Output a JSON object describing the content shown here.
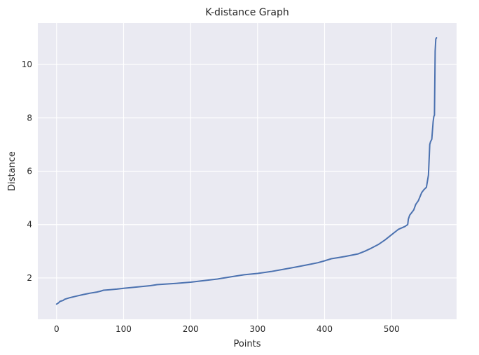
{
  "chart_data": {
    "type": "line",
    "title": "K-distance Graph",
    "xlabel": "Points",
    "ylabel": "Distance",
    "xlim": [
      -28,
      597
    ],
    "ylim": [
      0.45,
      11.55
    ],
    "xticks": [
      0,
      100,
      200,
      300,
      400,
      500
    ],
    "yticks": [
      2,
      4,
      6,
      8,
      10
    ],
    "grid": true,
    "legend": "none",
    "colors": {
      "line": "#4c72b0",
      "plot_bg": "#eaeaf2",
      "grid": "#ffffff"
    },
    "series": [
      {
        "x": [
          0,
          3,
          5,
          10,
          12,
          20,
          30,
          40,
          50,
          60,
          65,
          70,
          80,
          90,
          100,
          120,
          140,
          150,
          170,
          180,
          200,
          220,
          240,
          260,
          280,
          300,
          320,
          340,
          360,
          380,
          390,
          400,
          410,
          420,
          430,
          440,
          450,
          460,
          470,
          480,
          490,
          500,
          510,
          520,
          524,
          525,
          527,
          530,
          533,
          536,
          540,
          545,
          548,
          552,
          555,
          557,
          558,
          560,
          562,
          563,
          564,
          565,
          566,
          567
        ],
        "y": [
          1.02,
          1.07,
          1.12,
          1.16,
          1.2,
          1.26,
          1.32,
          1.38,
          1.43,
          1.47,
          1.5,
          1.54,
          1.56,
          1.58,
          1.61,
          1.66,
          1.71,
          1.75,
          1.78,
          1.8,
          1.84,
          1.9,
          1.96,
          2.04,
          2.12,
          2.17,
          2.24,
          2.33,
          2.42,
          2.52,
          2.57,
          2.64,
          2.72,
          2.76,
          2.8,
          2.85,
          2.9,
          3.0,
          3.12,
          3.25,
          3.42,
          3.62,
          3.82,
          3.93,
          4.0,
          4.2,
          4.35,
          4.45,
          4.55,
          4.75,
          4.9,
          5.2,
          5.3,
          5.4,
          5.85,
          7.0,
          7.1,
          7.2,
          7.85,
          8.05,
          8.1,
          10.5,
          10.95,
          11.0
        ]
      }
    ]
  }
}
